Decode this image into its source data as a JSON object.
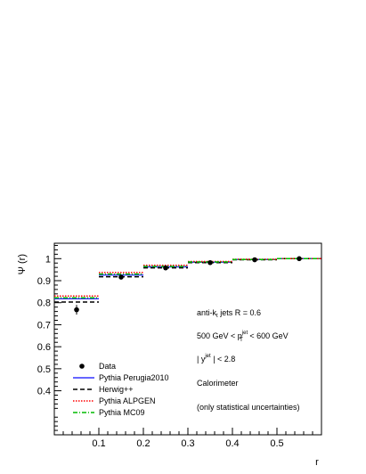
{
  "chart_data": {
    "type": "line",
    "xlabel": "r",
    "ylabel": "Ψ (r)",
    "xlim": [
      0,
      0.6
    ],
    "ylim": [
      0.2,
      1.07
    ],
    "x_ticks": [
      0.1,
      0.2,
      0.3,
      0.4,
      0.5
    ],
    "y_ticks": [
      0.4,
      0.5,
      0.6,
      0.7,
      0.8,
      0.9,
      1
    ],
    "x_tick_labels": [
      "0.1",
      "0.2",
      "0.3",
      "0.4",
      "0.5"
    ],
    "y_tick_labels": [
      "0.4",
      "0.5",
      "0.6",
      "0.7",
      "0.8",
      "0.9",
      "1"
    ],
    "bins": [
      [
        0.0,
        0.1
      ],
      [
        0.1,
        0.2
      ],
      [
        0.2,
        0.3
      ],
      [
        0.3,
        0.4
      ],
      [
        0.4,
        0.5
      ],
      [
        0.5,
        0.6
      ]
    ],
    "data_points": {
      "name": "Data",
      "x": [
        0.05,
        0.15,
        0.25,
        0.35,
        0.45,
        0.55
      ],
      "y": [
        0.768,
        0.916,
        0.958,
        0.982,
        0.995,
        1.0
      ],
      "yerr": [
        0.022,
        0.006,
        0.004,
        0.003,
        0.002,
        0.001
      ]
    },
    "series": [
      {
        "name": "Pythia Perugia2010",
        "style": "solid",
        "color": "#3333ff",
        "values": [
          0.818,
          0.926,
          0.963,
          0.984,
          0.996,
          1.0
        ]
      },
      {
        "name": "Herwig++",
        "style": "dashed",
        "color": "#000000",
        "values": [
          0.803,
          0.918,
          0.958,
          0.982,
          0.995,
          1.0
        ]
      },
      {
        "name": "Pythia ALPGEN",
        "style": "dotted",
        "color": "#ff0000",
        "values": [
          0.83,
          0.937,
          0.97,
          0.987,
          0.997,
          1.0
        ]
      },
      {
        "name": "Pythia MC09",
        "style": "dashdot",
        "color": "#00bb00",
        "values": [
          0.822,
          0.93,
          0.965,
          0.985,
          0.996,
          1.0
        ]
      }
    ],
    "annotations": {
      "jets": "anti-k",
      "jets_sub": "t",
      "jets_rest": " jets R = 0.6",
      "pt_a": "500 GeV < p",
      "pt_sub": "T",
      "pt_sup": "jet",
      "pt_b": " < 600 GeV",
      "y_a": "| y",
      "y_sup": "jet",
      "y_b": " | < 2.8",
      "calo": "Calorimeter",
      "stat": "(only statistical uncertainties)"
    }
  }
}
